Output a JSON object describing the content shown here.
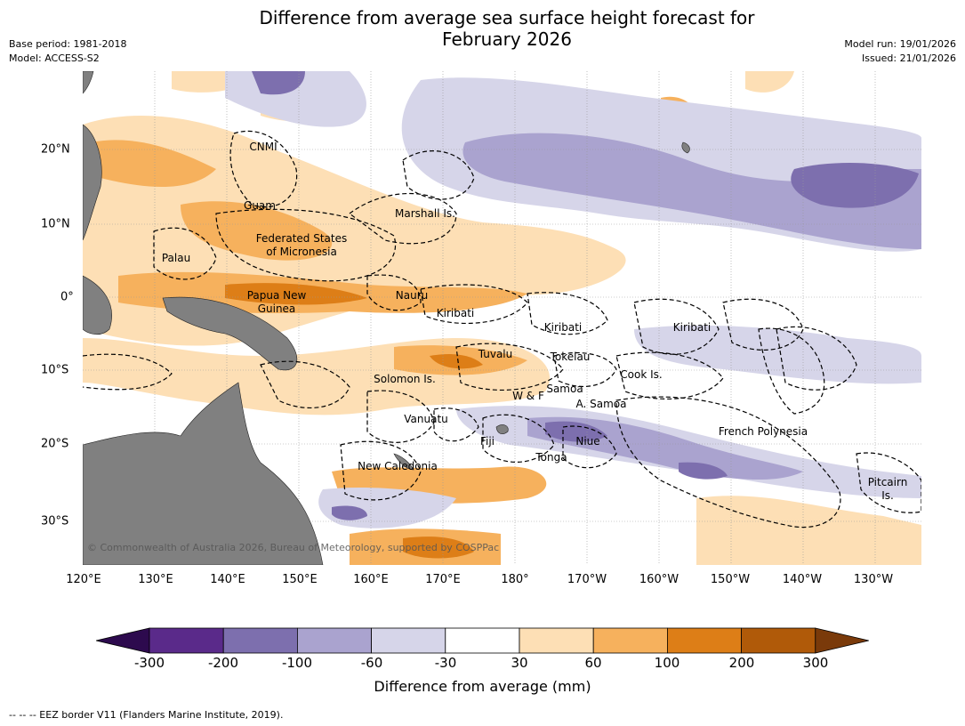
{
  "header": {
    "title_line1": "Difference from average sea surface height forecast for",
    "title_line2": "February 2026",
    "base_period": "Base period: 1981-2018",
    "model": "Model: ACCESS-S2",
    "model_run": "Model run: 19/01/2026",
    "issued": "Issued: 21/01/2026"
  },
  "axes": {
    "lat_labels": [
      "20°N",
      "10°N",
      "0°",
      "10°S",
      "20°S",
      "30°S"
    ],
    "lon_labels": [
      "120°E",
      "130°E",
      "140°E",
      "150°E",
      "160°E",
      "170°E",
      "180°",
      "170°W",
      "160°W",
      "150°W",
      "140°W",
      "130°W"
    ]
  },
  "places": [
    {
      "id": "cnmi",
      "label": "CNMI"
    },
    {
      "id": "guam",
      "label": "Guam"
    },
    {
      "id": "marshall",
      "label": "Marshall Is."
    },
    {
      "id": "fsm1",
      "label": "Federated States"
    },
    {
      "id": "fsm2",
      "label": "of Micronesia"
    },
    {
      "id": "palau",
      "label": "Palau"
    },
    {
      "id": "png1",
      "label": "Papua New"
    },
    {
      "id": "png2",
      "label": "Guinea"
    },
    {
      "id": "nauru",
      "label": "Nauru"
    },
    {
      "id": "kiribati1",
      "label": "Kiribati"
    },
    {
      "id": "kiribati2",
      "label": "Kiribati"
    },
    {
      "id": "kiribati3",
      "label": "Kiribati"
    },
    {
      "id": "tuvalu",
      "label": "Tuvalu"
    },
    {
      "id": "tokelau",
      "label": "Tokelau"
    },
    {
      "id": "cook",
      "label": "Cook Is."
    },
    {
      "id": "solomon",
      "label": "Solomon Is."
    },
    {
      "id": "samoa",
      "label": "Samoa"
    },
    {
      "id": "wf",
      "label": "W & F"
    },
    {
      "id": "asamoa",
      "label": "A. Samoa"
    },
    {
      "id": "vanuatu",
      "label": "Vanuatu"
    },
    {
      "id": "fiji",
      "label": "Fiji"
    },
    {
      "id": "niue",
      "label": "Niue"
    },
    {
      "id": "frenchpoly",
      "label": "French Polynesia"
    },
    {
      "id": "tonga",
      "label": "Tonga"
    },
    {
      "id": "newcal",
      "label": "New Caledonia"
    },
    {
      "id": "pitcairn1",
      "label": "Pitcairn"
    },
    {
      "id": "pitcairn2",
      "label": "Is."
    }
  ],
  "copyright": "© Commonwealth of Australia 2026, Bureau of Meteorology, supported by COSPPac",
  "colorbar": {
    "ticks": [
      "-300",
      "-200",
      "-100",
      "-60",
      "-30",
      "30",
      "60",
      "100",
      "200",
      "300"
    ],
    "colors": [
      "#2d0a4e",
      "#5a2a8a",
      "#7d6fae",
      "#aaa3cf",
      "#d6d5e9",
      "#ffffff",
      "#fddfb5",
      "#f6b15d",
      "#dd7e17",
      "#b05a09",
      "#7a3a0a"
    ],
    "label": "Difference from average (mm)"
  },
  "footnote": "--  --  -- EEZ border V11 (Flanders Marine Institute, 2019)."
}
